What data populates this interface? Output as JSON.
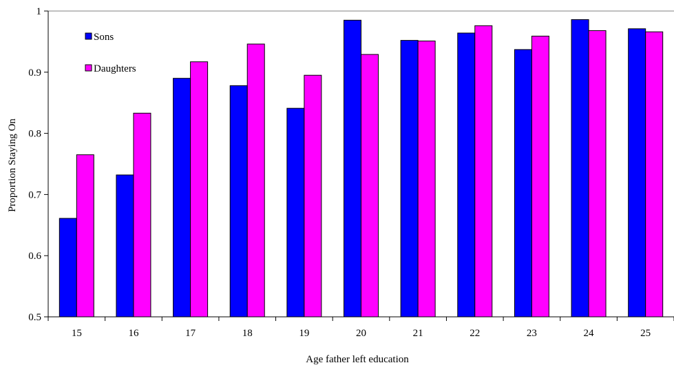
{
  "chart_data": {
    "type": "bar",
    "title": "",
    "xlabel": "Age father left education",
    "ylabel": "Proportion Staying On",
    "ylim": [
      0.5,
      1
    ],
    "yticks": [
      "0.5",
      "0.6",
      "0.7",
      "0.8",
      "0.9",
      "1"
    ],
    "categories": [
      "15",
      "16",
      "17",
      "18",
      "19",
      "20",
      "21",
      "22",
      "23",
      "24",
      "25"
    ],
    "series": [
      {
        "name": "Sons",
        "color": "#0000ff",
        "values": [
          0.661,
          0.732,
          0.89,
          0.878,
          0.841,
          0.985,
          0.952,
          0.964,
          0.937,
          0.986,
          0.971
        ]
      },
      {
        "name": "Daughters",
        "color": "#ff00ff",
        "values": [
          0.765,
          0.833,
          0.917,
          0.946,
          0.895,
          0.929,
          0.951,
          0.976,
          0.959,
          0.968,
          0.966
        ]
      }
    ],
    "legend": "top-left",
    "grid": false
  }
}
